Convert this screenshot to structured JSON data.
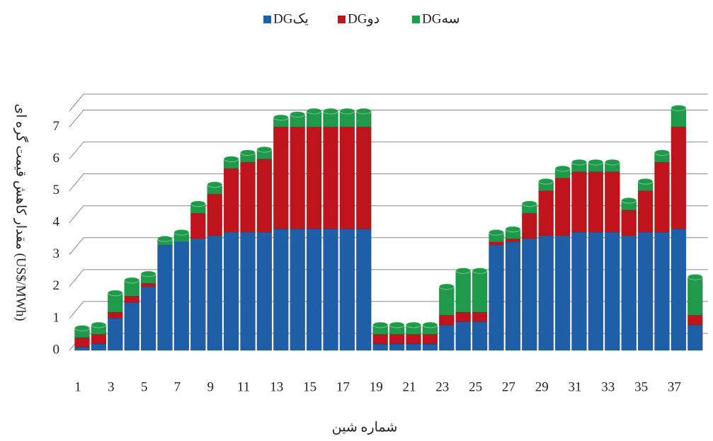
{
  "chart_data": {
    "type": "bar3d_stacked",
    "y_label": "مقدار کاهش قیمت گره ای (US$/MWh)",
    "x_label": "شماره شین",
    "categories": [
      "1",
      null,
      "3",
      null,
      "5",
      null,
      "7",
      null,
      "9",
      null,
      "11",
      null,
      "13",
      null,
      "15",
      null,
      "17",
      null,
      "19",
      null,
      "21",
      null,
      "23",
      null,
      "25",
      null,
      "27",
      null,
      "29",
      null,
      "31",
      null,
      "33",
      null,
      "35",
      null,
      "37",
      null
    ],
    "series": [
      {
        "name": "DGیک",
        "color": "#1f5fa8",
        "values": [
          0.1,
          0.2,
          1.0,
          1.5,
          2.0,
          3.3,
          3.4,
          3.5,
          3.6,
          3.7,
          3.7,
          3.7,
          3.8,
          3.8,
          3.8,
          3.8,
          3.8,
          3.8,
          0.2,
          0.2,
          0.2,
          0.2,
          0.8,
          0.9,
          0.9,
          3.3,
          3.4,
          3.5,
          3.6,
          3.6,
          3.7,
          3.7,
          3.7,
          3.6,
          3.7,
          3.7,
          3.8,
          0.8
        ]
      },
      {
        "name": "DGدو",
        "color": "#c0141c",
        "values": [
          0.3,
          0.3,
          0.2,
          0.2,
          0.1,
          0,
          0,
          0.8,
          1.3,
          2.0,
          2.2,
          2.3,
          3.2,
          3.2,
          3.2,
          3.2,
          3.2,
          3.2,
          0.3,
          0.3,
          0.3,
          0.3,
          0.3,
          0.3,
          0.3,
          0.1,
          0.1,
          0.8,
          1.4,
          1.8,
          1.9,
          1.9,
          1.9,
          0.8,
          1.3,
          2.2,
          3.2,
          0.3
        ]
      },
      {
        "name": "DGسه",
        "color": "#1f9a4a",
        "values": [
          0.3,
          0.3,
          0.6,
          0.5,
          0.3,
          0.2,
          0.3,
          0.3,
          0.3,
          0.3,
          0.3,
          0.3,
          0.3,
          0.4,
          0.5,
          0.5,
          0.5,
          0.5,
          0.3,
          0.3,
          0.3,
          0.3,
          0.9,
          1.3,
          1.3,
          0.3,
          0.3,
          0.3,
          0.3,
          0.3,
          0.3,
          0.3,
          0.3,
          0.3,
          0.3,
          0.3,
          0.6,
          1.2
        ]
      }
    ],
    "ylim": [
      0,
      7.5
    ],
    "yticks": [
      0,
      1,
      2,
      3,
      4,
      5,
      6,
      7
    ],
    "grid": true,
    "legend": "top"
  }
}
